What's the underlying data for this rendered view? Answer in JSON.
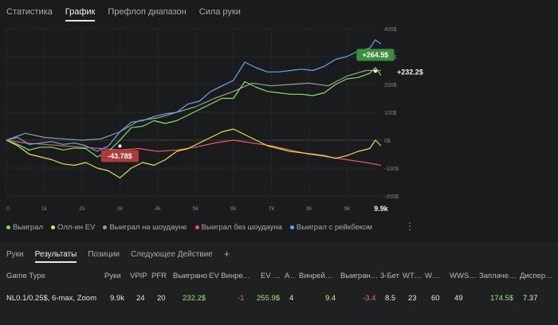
{
  "top_tabs": [
    "Статистика",
    "График",
    "Префлоп диапазон",
    "Сила руки"
  ],
  "chart_data": {
    "type": "line",
    "x_ticks": [
      "0",
      "1k",
      "2k",
      "3k",
      "4k",
      "5k",
      "6k",
      "7k",
      "8k",
      "9k"
    ],
    "x_end_label": "9.9k",
    "y_ticks": [
      "400$",
      "300$",
      "200$",
      "100$",
      "0$",
      "-100$",
      "-200$"
    ],
    "ylim": [
      -200,
      400
    ],
    "xlim": [
      0,
      9900
    ],
    "series": [
      {
        "name": "Выиграл",
        "color": "#7ee35a",
        "x": [
          0,
          300,
          600,
          900,
          1200,
          1500,
          1800,
          2100,
          2400,
          2700,
          3000,
          3300,
          3600,
          3900,
          4200,
          4500,
          4800,
          5100,
          5400,
          5700,
          6000,
          6300,
          6600,
          6900,
          7200,
          7500,
          7800,
          8100,
          8400,
          8700,
          9000,
          9300,
          9600,
          9750,
          9900
        ],
        "y": [
          0,
          -15,
          -35,
          -25,
          -25,
          -35,
          -28,
          -30,
          -60,
          -40,
          0,
          45,
          50,
          70,
          60,
          70,
          90,
          110,
          130,
          150,
          150,
          210,
          190,
          175,
          170,
          165,
          165,
          160,
          170,
          200,
          220,
          225,
          240,
          260,
          232.2
        ]
      },
      {
        "name": "Олл-ин EV",
        "color": "#e9df4f",
        "x": [
          0,
          300,
          600,
          900,
          1200,
          1500,
          1800,
          2100,
          2400,
          2700,
          3000,
          3300,
          3600,
          3900,
          4200,
          4500,
          4800,
          5100,
          5400,
          5700,
          6000,
          6300,
          6600,
          6900,
          7200,
          7500,
          7800,
          8100,
          8400,
          8700,
          9000,
          9300,
          9600,
          9750,
          9900
        ],
        "y": [
          0,
          -20,
          -50,
          -60,
          -70,
          -85,
          -90,
          -80,
          -100,
          -110,
          -135,
          -100,
          -80,
          -90,
          -70,
          -40,
          -30,
          -10,
          10,
          30,
          40,
          20,
          0,
          -20,
          -30,
          -40,
          -45,
          -50,
          -55,
          -65,
          -55,
          -40,
          -30,
          0,
          -20
        ]
      },
      {
        "name": "Выиграл на шоудауне",
        "color": "#9a9a9a",
        "x": [
          0,
          500,
          1000,
          1500,
          2000,
          2500,
          3000,
          3500,
          4000,
          4500,
          5000,
          5500,
          6000,
          6500,
          7000,
          7500,
          8000,
          8500,
          9000,
          9500,
          9900
        ],
        "y": [
          0,
          25,
          10,
          5,
          0,
          5,
          30,
          70,
          80,
          100,
          120,
          150,
          175,
          205,
          195,
          200,
          205,
          195,
          230,
          250,
          250
        ]
      },
      {
        "name": "Выиграл без шоудауна",
        "color": "#e75a5a",
        "x": [
          0,
          500,
          1000,
          1500,
          2000,
          2500,
          3000,
          3500,
          4000,
          4500,
          5000,
          5500,
          6000,
          6500,
          7000,
          7500,
          8000,
          8500,
          9000,
          9500,
          9900
        ],
        "y": [
          0,
          -10,
          -15,
          -20,
          -25,
          -30,
          -35,
          -30,
          -40,
          -35,
          -25,
          -10,
          0,
          -10,
          -20,
          -35,
          -50,
          -60,
          -70,
          -80,
          -90
        ]
      },
      {
        "name": "Выиграл с рейкбеком",
        "color": "#5aaaf0",
        "x": [
          0,
          300,
          600,
          900,
          1200,
          1500,
          1800,
          2100,
          2400,
          2700,
          3000,
          3300,
          3600,
          3900,
          4200,
          4500,
          4800,
          5100,
          5400,
          5700,
          6000,
          6300,
          6600,
          6900,
          7200,
          7500,
          7800,
          8100,
          8400,
          8700,
          9000,
          9300,
          9600,
          9750,
          9900
        ],
        "y": [
          0,
          10,
          -15,
          -10,
          -5,
          -15,
          -10,
          -20,
          -40,
          -20,
          30,
          65,
          70,
          85,
          95,
          100,
          130,
          140,
          175,
          195,
          215,
          280,
          260,
          245,
          245,
          250,
          255,
          250,
          265,
          290,
          300,
          320,
          330,
          360,
          345
        ]
      }
    ],
    "annotations": [
      {
        "label": "+264.5$",
        "x": 9750,
        "y": 264.5,
        "color": "#3a8f3a"
      },
      {
        "label": "-43.78$",
        "x": 3000,
        "y": -43.78,
        "color": "#b03a3a"
      },
      {
        "label": "+232.2$",
        "x": 9900,
        "y": 232.2
      }
    ]
  },
  "legend": [
    {
      "label": "Выиграл",
      "color": "#7ee35a"
    },
    {
      "label": "Олл-ин EV",
      "color": "#e9df4f"
    },
    {
      "label": "Выиграл на шоудауне",
      "color": "#9a9a9a"
    },
    {
      "label": "Выиграл без шоудауна",
      "color": "#e75a5a"
    },
    {
      "label": "Выиграл с рейкбеком",
      "color": "#5aaaf0"
    }
  ],
  "bottom_tabs": [
    "Руки",
    "Результаты",
    "Позиции",
    "Следующее Действие",
    "+"
  ],
  "table": {
    "headers": [
      "Game Type",
      "Руки",
      "VPIP",
      "PFR",
      "Выиграно",
      "EV Винре...",
      "EV diff.",
      "Ag.",
      "Винрейт ...",
      "Выиграно...",
      "3-Бет",
      "WTSD",
      "W%SD",
      "WWSF%",
      "Заплачен...",
      "Дисперси..."
    ],
    "row": [
      "NL0.1/0.25$, 6-max, Zoom",
      "9.9k",
      "24",
      "20",
      "232.2$",
      "-1",
      "255.9$",
      "4",
      "9.4",
      "-3.4",
      "8.5",
      "23",
      "60",
      "49",
      "174.5$",
      "7.37"
    ]
  }
}
